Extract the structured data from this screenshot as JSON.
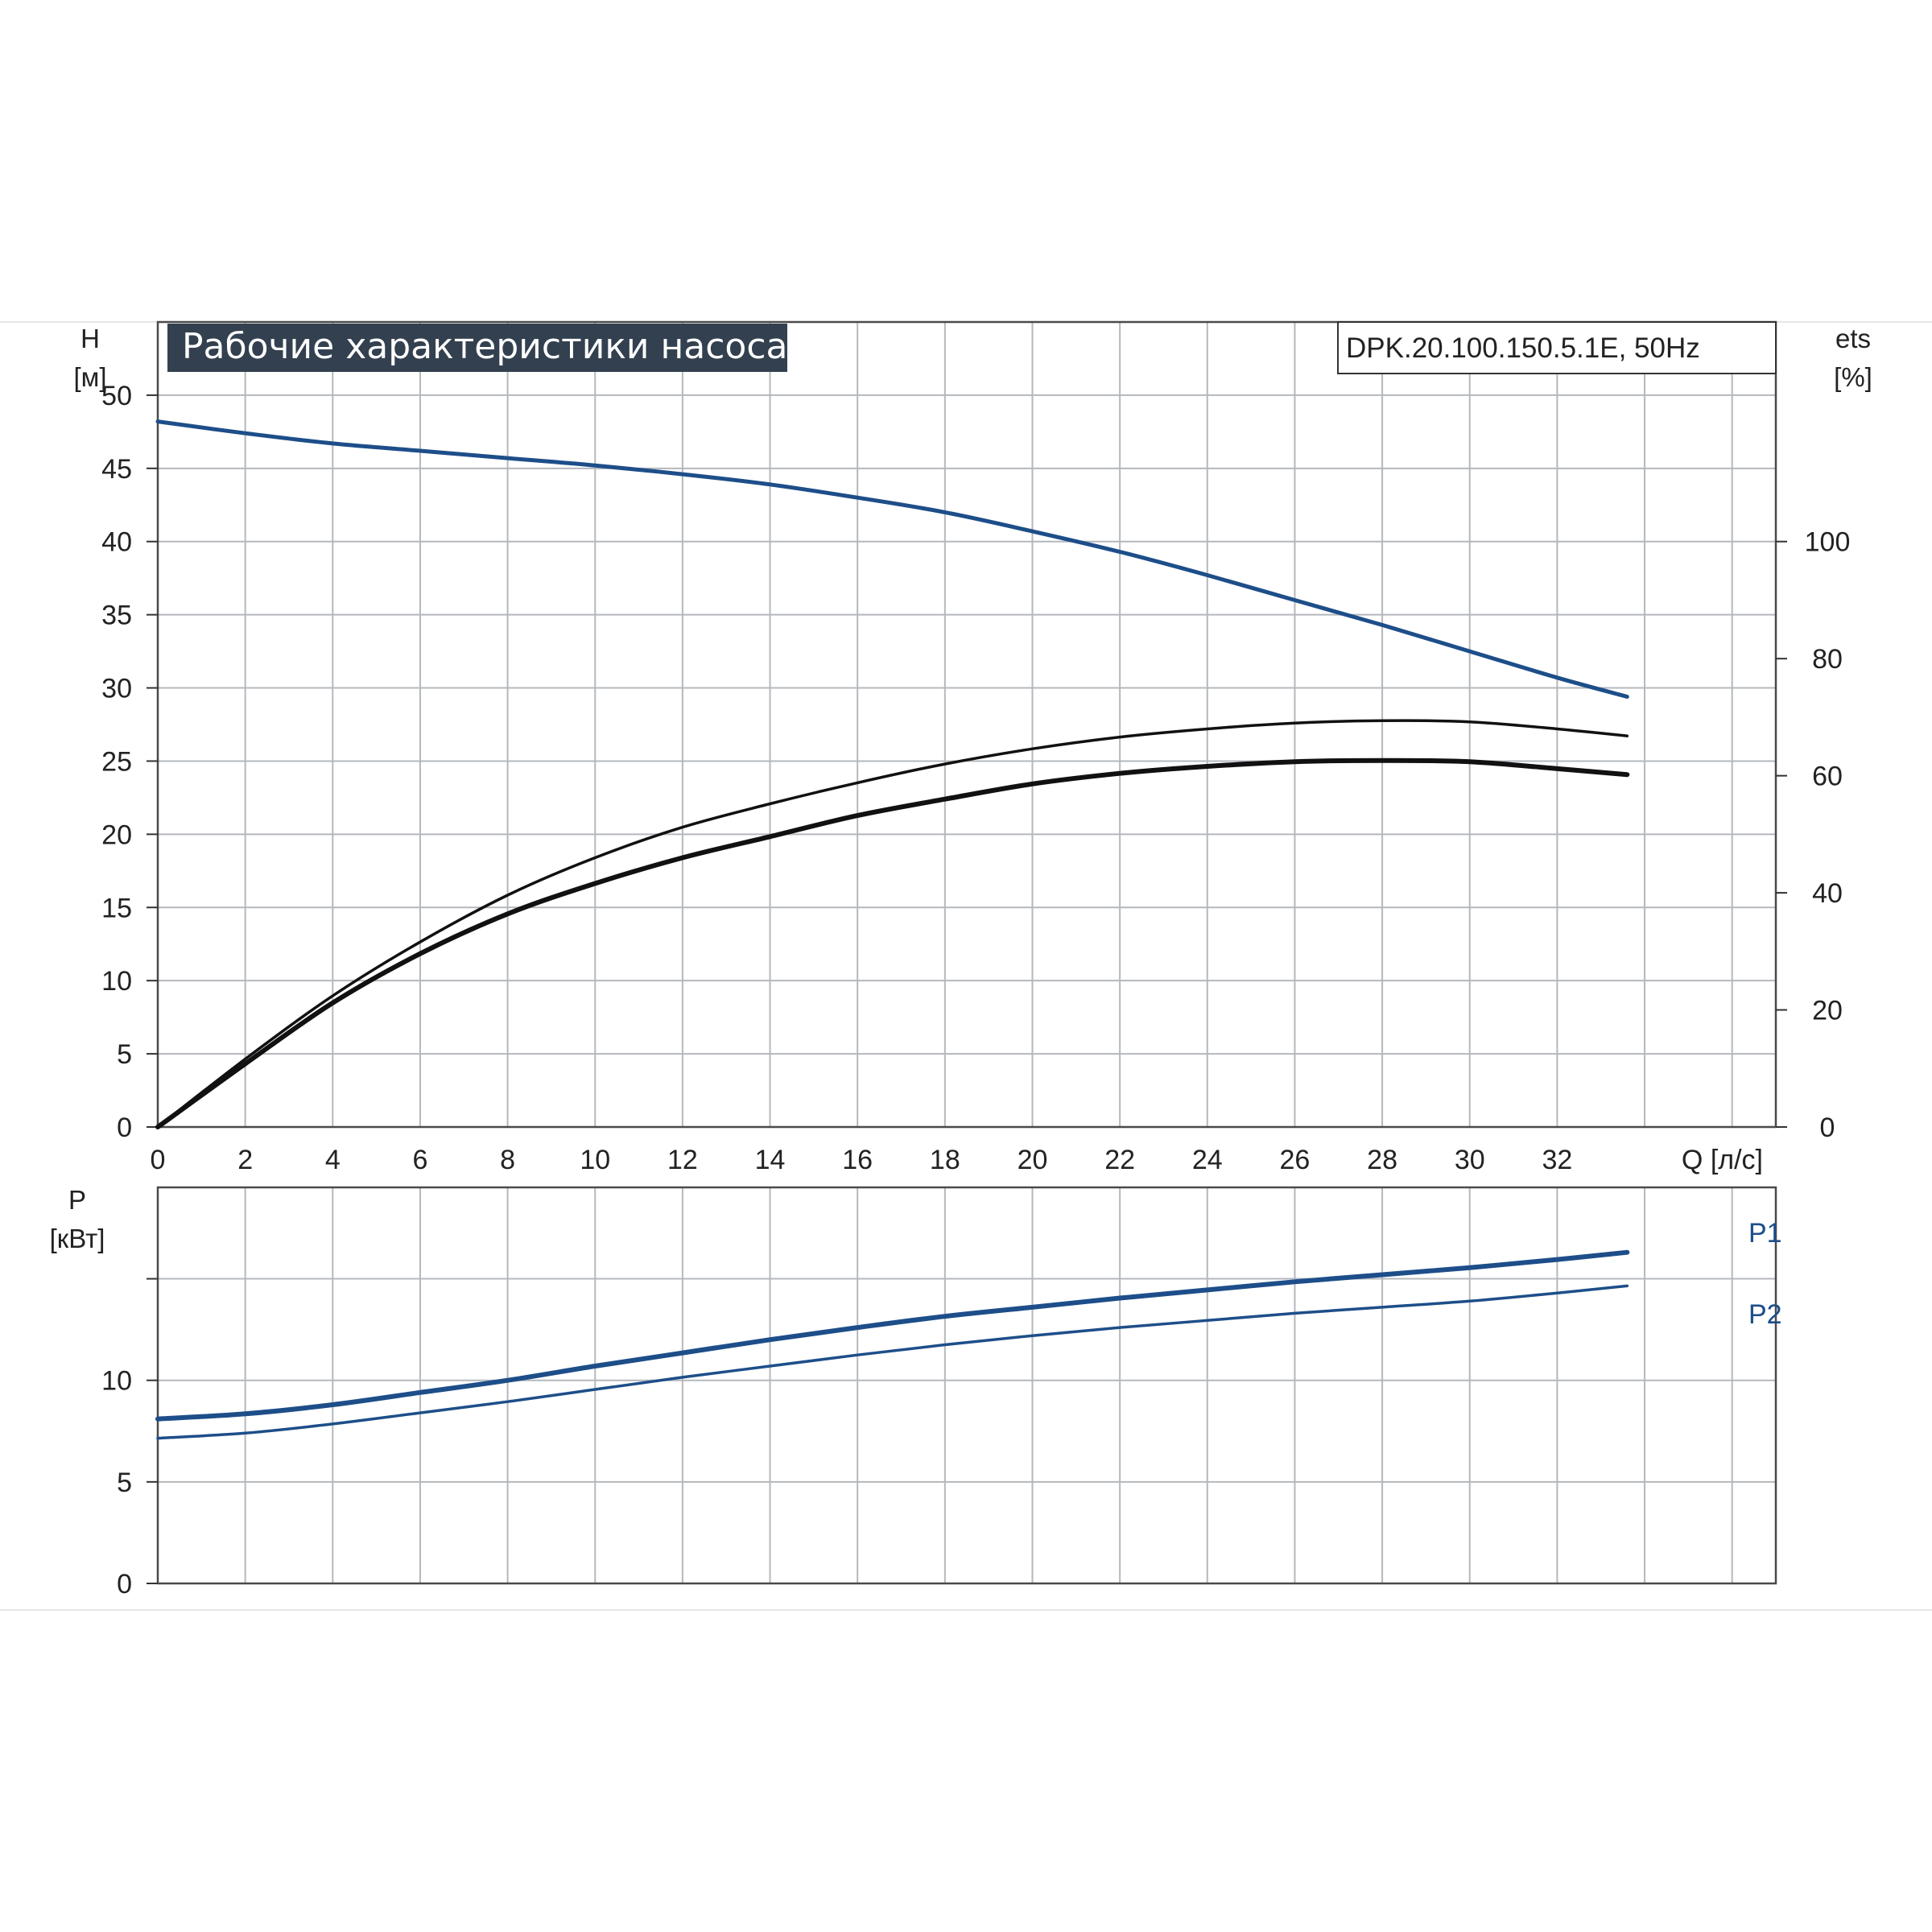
{
  "chart_data": [
    {
      "type": "line",
      "title": "Рабочие характеристики насоса",
      "model_label": "DPK.20.100.150.5.1E, 50Hz",
      "ylabel": "H",
      "yunit": "[м]",
      "y2label": "ets",
      "y2unit": "[%]",
      "xlabel": "Q [л/с]",
      "xlim": [
        0,
        37
      ],
      "ylim": [
        0,
        55
      ],
      "y2lim": [
        0,
        137.5
      ],
      "grid": true,
      "x_ticks": [
        "0",
        "2",
        "4",
        "6",
        "8",
        "10",
        "12",
        "14",
        "16",
        "18",
        "20",
        "22",
        "24",
        "26",
        "28",
        "30",
        "32"
      ],
      "y_ticks": [
        "0",
        "5",
        "10",
        "15",
        "20",
        "25",
        "30",
        "35",
        "40",
        "45",
        "50"
      ],
      "y2_ticks": [
        "0",
        "20",
        "40",
        "60",
        "80",
        "100"
      ],
      "series": [
        {
          "name": "H",
          "axis": "left",
          "color": "#1d4e89",
          "x": [
            0,
            2,
            4,
            6,
            8,
            10,
            12,
            14,
            16,
            18,
            20,
            22,
            24,
            26,
            28,
            30,
            32,
            33.6
          ],
          "values": [
            48.2,
            47.4,
            46.7,
            46.2,
            45.7,
            45.2,
            44.6,
            43.9,
            43.0,
            42.0,
            40.7,
            39.3,
            37.7,
            36.0,
            34.3,
            32.5,
            30.7,
            29.4
          ]
        },
        {
          "axis": "right",
          "color": "#111111",
          "x": [
            0,
            2,
            4,
            6,
            8,
            10,
            12,
            14,
            16,
            18,
            20,
            22,
            24,
            26,
            28,
            30,
            32,
            33.6
          ],
          "values": [
            0,
            11.6,
            22.4,
            31.6,
            39.6,
            46,
            51.2,
            55.2,
            58.8,
            62,
            64.6,
            66.6,
            68,
            69,
            69.4,
            69.2,
            68,
            66.8
          ]
        },
        {
          "axis": "right",
          "color": "#111111",
          "x": [
            0,
            2,
            4,
            6,
            8,
            10,
            12,
            14,
            16,
            18,
            20,
            22,
            24,
            26,
            28,
            30,
            32,
            33.6
          ],
          "values": [
            0,
            10.8,
            21.2,
            29.6,
            36.4,
            41.6,
            46,
            49.6,
            53.2,
            56,
            58.6,
            60.4,
            61.6,
            62.4,
            62.6,
            62.4,
            61.2,
            60.2
          ]
        }
      ]
    },
    {
      "type": "line",
      "ylabel": "P",
      "yunit": "[кВт]",
      "xlim": [
        0,
        37
      ],
      "ylim": [
        0,
        19.5
      ],
      "grid": true,
      "y_ticks": [
        "0",
        "5",
        "10"
      ],
      "series": [
        {
          "name": "P1",
          "color": "#1d4e89",
          "x": [
            0,
            2,
            4,
            6,
            8,
            10,
            12,
            14,
            16,
            18,
            20,
            22,
            24,
            26,
            28,
            30,
            32,
            33.6
          ],
          "values": [
            8.1,
            8.35,
            8.8,
            9.4,
            10.0,
            10.7,
            11.35,
            12.0,
            12.6,
            13.15,
            13.6,
            14.05,
            14.45,
            14.85,
            15.2,
            15.55,
            15.95,
            16.3
          ]
        },
        {
          "name": "P2",
          "color": "#1d4e89",
          "x": [
            0,
            2,
            4,
            6,
            8,
            10,
            12,
            14,
            16,
            18,
            20,
            22,
            24,
            26,
            28,
            30,
            32,
            33.6
          ],
          "values": [
            7.15,
            7.4,
            7.85,
            8.4,
            8.95,
            9.55,
            10.15,
            10.7,
            11.25,
            11.75,
            12.2,
            12.6,
            12.95,
            13.3,
            13.6,
            13.9,
            14.3,
            14.65
          ]
        }
      ]
    }
  ]
}
